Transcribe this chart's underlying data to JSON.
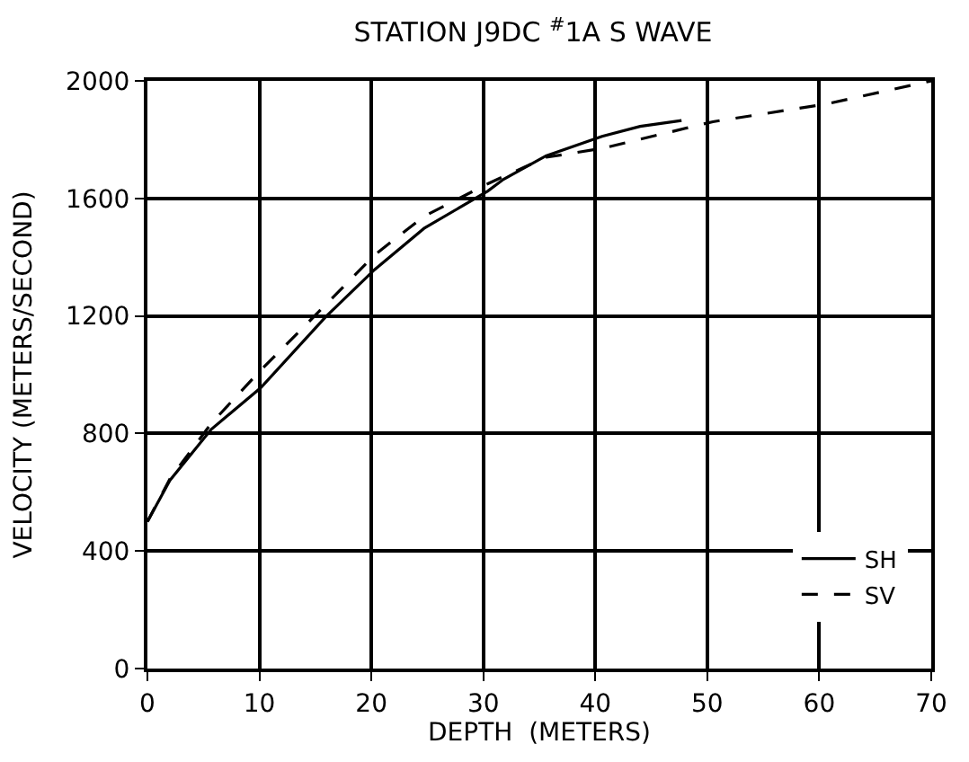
{
  "chart_data": {
    "type": "line",
    "title": "STATION J9DC $^{#}$1A S WAVE",
    "xlabel": "DEPTH  (METERS)",
    "ylabel": "VELOCITY (METERS/SECOND)",
    "xlim": [
      0,
      70
    ],
    "ylim": [
      0,
      2000
    ],
    "xticks": [
      0,
      10,
      20,
      30,
      40,
      50,
      60,
      70
    ],
    "yticks": [
      0,
      400,
      800,
      1200,
      1600,
      2000
    ],
    "grid": true,
    "legend": "bottom right",
    "marker": "none",
    "series": [
      {
        "name": "SH",
        "color": "#000000",
        "line_style": "solid",
        "x": [
          0,
          2,
          5.7,
          10.1,
          15.9,
          20.3,
          24.7,
          30.4,
          31.8,
          35.6,
          40.6,
          44,
          47.7
        ],
        "values": [
          500,
          640,
          814,
          955,
          1196,
          1358,
          1498,
          1625,
          1665,
          1745,
          1811,
          1845,
          1865
        ]
      },
      {
        "name": "SV",
        "color": "#000000",
        "line_style": "dashed",
        "x": [
          0,
          2,
          5.7,
          10.1,
          15.9,
          20.3,
          24.7,
          30.4,
          35.6,
          40.6,
          50.5,
          60.6,
          70
        ],
        "values": [
          500,
          645,
          834,
          1015,
          1237,
          1408,
          1539,
          1650,
          1740,
          1770,
          1861,
          1921,
          2000
        ]
      }
    ]
  }
}
